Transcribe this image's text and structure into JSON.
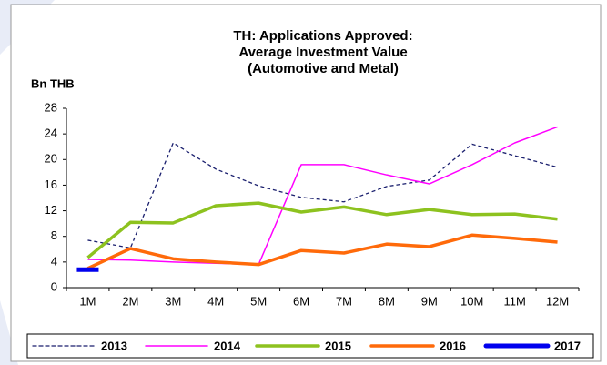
{
  "chart_data": {
    "type": "line",
    "title": [
      "TH: Applications Approved:",
      "Average Investment Value",
      "(Automotive and Metal)"
    ],
    "y_label": "Bn THB",
    "categories": [
      "1M",
      "2M",
      "3M",
      "4M",
      "5M",
      "6M",
      "7M",
      "8M",
      "9M",
      "10M",
      "11M",
      "12M"
    ],
    "series": [
      {
        "name": "2013",
        "color": "#1a1f6e",
        "dashed": true,
        "values": [
          7.4,
          6.2,
          22.6,
          18.5,
          15.9,
          14.1,
          13.4,
          15.8,
          16.8,
          22.4,
          20.6,
          18.8
        ]
      },
      {
        "name": "2014",
        "color": "#ff00ff",
        "values": [
          4.4,
          4.3,
          4.0,
          3.8,
          3.6,
          19.2,
          19.2,
          17.6,
          16.2,
          19.2,
          22.6,
          25.1
        ]
      },
      {
        "name": "2015",
        "color": "#8dc21f",
        "values": [
          4.7,
          10.2,
          10.1,
          12.8,
          13.2,
          11.8,
          12.6,
          11.4,
          12.2,
          11.4,
          11.5,
          10.7
        ]
      },
      {
        "name": "2016",
        "color": "#ff6a0a",
        "values": [
          3.0,
          6.1,
          4.5,
          4.0,
          3.6,
          5.8,
          5.4,
          6.8,
          6.4,
          8.2,
          7.7,
          7.1
        ]
      },
      {
        "name": "2017",
        "color": "#0000ee",
        "values": [
          2.8,
          null,
          null,
          null,
          null,
          null,
          null,
          null,
          null,
          null,
          null,
          null
        ]
      }
    ],
    "ylim": [
      0,
      28
    ],
    "yticks": [
      0,
      4,
      8,
      12,
      16,
      20,
      24,
      28
    ],
    "grid": false,
    "legend": "bottom"
  }
}
